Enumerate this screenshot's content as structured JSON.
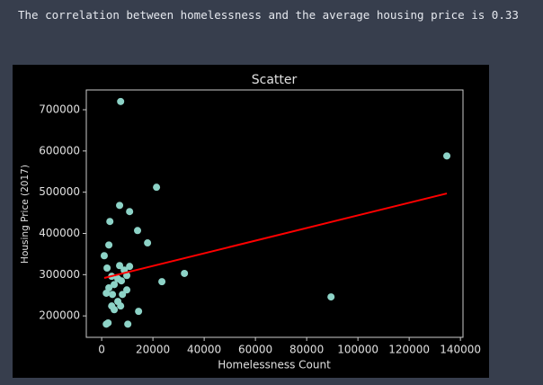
{
  "output_text": "The correlation between homelessness and the average housing price is 0.33",
  "chart_data": {
    "type": "scatter",
    "title": "Scatter",
    "xlabel": "Homelessness Count",
    "ylabel": "Housing Price (2017)",
    "series": [
      {
        "color": "#8dd3c7",
        "x": [
          7400,
          134700,
          21400,
          7000,
          10900,
          3200,
          14000,
          17900,
          2800,
          1000,
          7000,
          10900,
          2100,
          8800,
          32300,
          3900,
          9800,
          6300,
          7700,
          23500,
          4900,
          2800,
          9800,
          1800,
          4200,
          8100,
          89500,
          6300,
          3900,
          7400,
          4900,
          14400,
          2500,
          1800,
          10200
        ],
        "y": [
          720000,
          588000,
          512000,
          468000,
          453000,
          429000,
          407000,
          377000,
          372000,
          346000,
          322000,
          320000,
          316000,
          311000,
          303000,
          296000,
          298000,
          290000,
          285000,
          283000,
          276000,
          268000,
          263000,
          255000,
          252000,
          252000,
          246000,
          235000,
          224000,
          224000,
          215000,
          211000,
          183000,
          180000,
          180000
        ]
      }
    ],
    "fit": {
      "color": "#ff0000",
      "x": [
        1000,
        134700
      ],
      "y": [
        292000,
        497000
      ]
    },
    "xlim": [
      -6000,
      141000
    ],
    "xticks": [
      0,
      20000,
      40000,
      60000,
      80000,
      100000,
      120000,
      140000
    ],
    "ylim": [
      148000,
      748000
    ],
    "yticks": [
      200000,
      300000,
      400000,
      500000,
      600000,
      700000
    ]
  }
}
